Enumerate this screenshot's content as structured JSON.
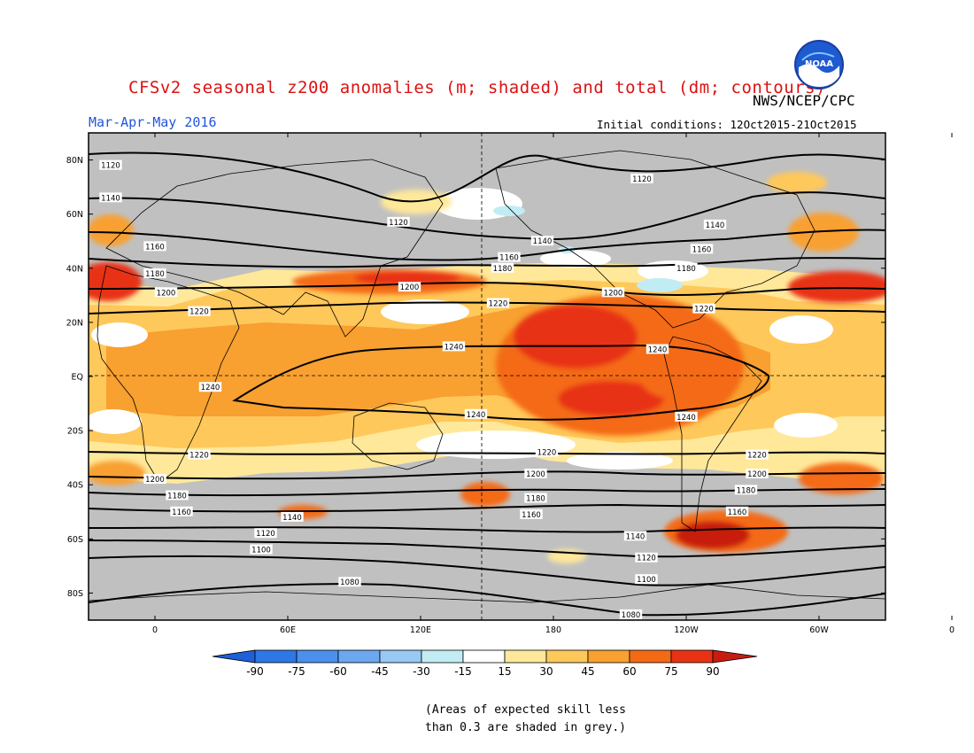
{
  "header": {
    "title": "CFSv2 seasonal z200 anomalies (m; shaded) and total (dm; contours)",
    "agency": "NWS/NCEP/CPC",
    "season": "Mar-Apr-May 2016",
    "initial_conditions": "Initial conditions: 12Oct2015-21Oct2015",
    "logo_text": "NOAA"
  },
  "map": {
    "projection": "cylindrical equidistant",
    "lon_range": [
      -30,
      330
    ],
    "lat_range": [
      -90,
      90
    ],
    "lon_ticks": [
      "0",
      "60E",
      "120E",
      "180",
      "120W",
      "60W",
      "0"
    ],
    "lat_ticks": [
      "80N",
      "60N",
      "40N",
      "20N",
      "EQ",
      "20S",
      "40S",
      "60S",
      "80S"
    ],
    "contour_labels": [
      {
        "value": "1120",
        "lon": -20,
        "lat": 78
      },
      {
        "value": "1140",
        "lon": -20,
        "lat": 66
      },
      {
        "value": "1160",
        "lon": 0,
        "lat": 48
      },
      {
        "value": "1180",
        "lon": 0,
        "lat": 38
      },
      {
        "value": "1200",
        "lon": 5,
        "lat": 31
      },
      {
        "value": "1220",
        "lon": 20,
        "lat": 24
      },
      {
        "value": "1240",
        "lon": 25,
        "lat": -4
      },
      {
        "value": "1120",
        "lon": 110,
        "lat": 57
      },
      {
        "value": "1140",
        "lon": 175,
        "lat": 50
      },
      {
        "value": "1160",
        "lon": 160,
        "lat": 44
      },
      {
        "value": "1180",
        "lon": 157,
        "lat": 40
      },
      {
        "value": "1200",
        "lon": 115,
        "lat": 33
      },
      {
        "value": "1220",
        "lon": 155,
        "lat": 27
      },
      {
        "value": "1240",
        "lon": 135,
        "lat": 11
      },
      {
        "value": "1240",
        "lon": 145,
        "lat": -14
      },
      {
        "value": "1200",
        "lon": 207,
        "lat": 31
      },
      {
        "value": "1240",
        "lon": 227,
        "lat": 10
      },
      {
        "value": "1220",
        "lon": 248,
        "lat": 25
      },
      {
        "value": "1240",
        "lon": 240,
        "lat": -15
      },
      {
        "value": "1120",
        "lon": 220,
        "lat": 73
      },
      {
        "value": "1140",
        "lon": 253,
        "lat": 56
      },
      {
        "value": "1160",
        "lon": 247,
        "lat": 47
      },
      {
        "value": "1180",
        "lon": 240,
        "lat": 40
      },
      {
        "value": "1220",
        "lon": 20,
        "lat": -29
      },
      {
        "value": "1200",
        "lon": 0,
        "lat": -38
      },
      {
        "value": "1180",
        "lon": 10,
        "lat": -44
      },
      {
        "value": "1160",
        "lon": 12,
        "lat": -50
      },
      {
        "value": "1140",
        "lon": 62,
        "lat": -52
      },
      {
        "value": "1120",
        "lon": 50,
        "lat": -58
      },
      {
        "value": "1100",
        "lon": 48,
        "lat": -64
      },
      {
        "value": "1080",
        "lon": 88,
        "lat": -76
      },
      {
        "value": "1220",
        "lon": 177,
        "lat": -28
      },
      {
        "value": "1200",
        "lon": 172,
        "lat": -36
      },
      {
        "value": "1180",
        "lon": 172,
        "lat": -45
      },
      {
        "value": "1160",
        "lon": 170,
        "lat": -51
      },
      {
        "value": "1140",
        "lon": 217,
        "lat": -59
      },
      {
        "value": "1120",
        "lon": 222,
        "lat": -67
      },
      {
        "value": "1100",
        "lon": 222,
        "lat": -75
      },
      {
        "value": "1080",
        "lon": 215,
        "lat": -88
      },
      {
        "value": "1220",
        "lon": 272,
        "lat": -29
      },
      {
        "value": "1200",
        "lon": 272,
        "lat": -36
      },
      {
        "value": "1180",
        "lon": 267,
        "lat": -42
      },
      {
        "value": "1160",
        "lon": 263,
        "lat": -50
      }
    ]
  },
  "colorbar": {
    "ticks": [
      "-90",
      "-75",
      "-60",
      "-45",
      "-30",
      "-15",
      "15",
      "30",
      "45",
      "60",
      "75",
      "90"
    ],
    "colors": [
      "#1e60d8",
      "#2e78e6",
      "#4a90ec",
      "#6ca8f0",
      "#98c8f4",
      "#c2ecf4",
      "#ffffff",
      "#ffe89a",
      "#ffc85a",
      "#f8a030",
      "#f46a14",
      "#e83214",
      "#c81c10"
    ]
  },
  "footnote": {
    "line1": "(Areas of expected skill less",
    "line2": "than 0.3 are shaded in grey.)"
  }
}
